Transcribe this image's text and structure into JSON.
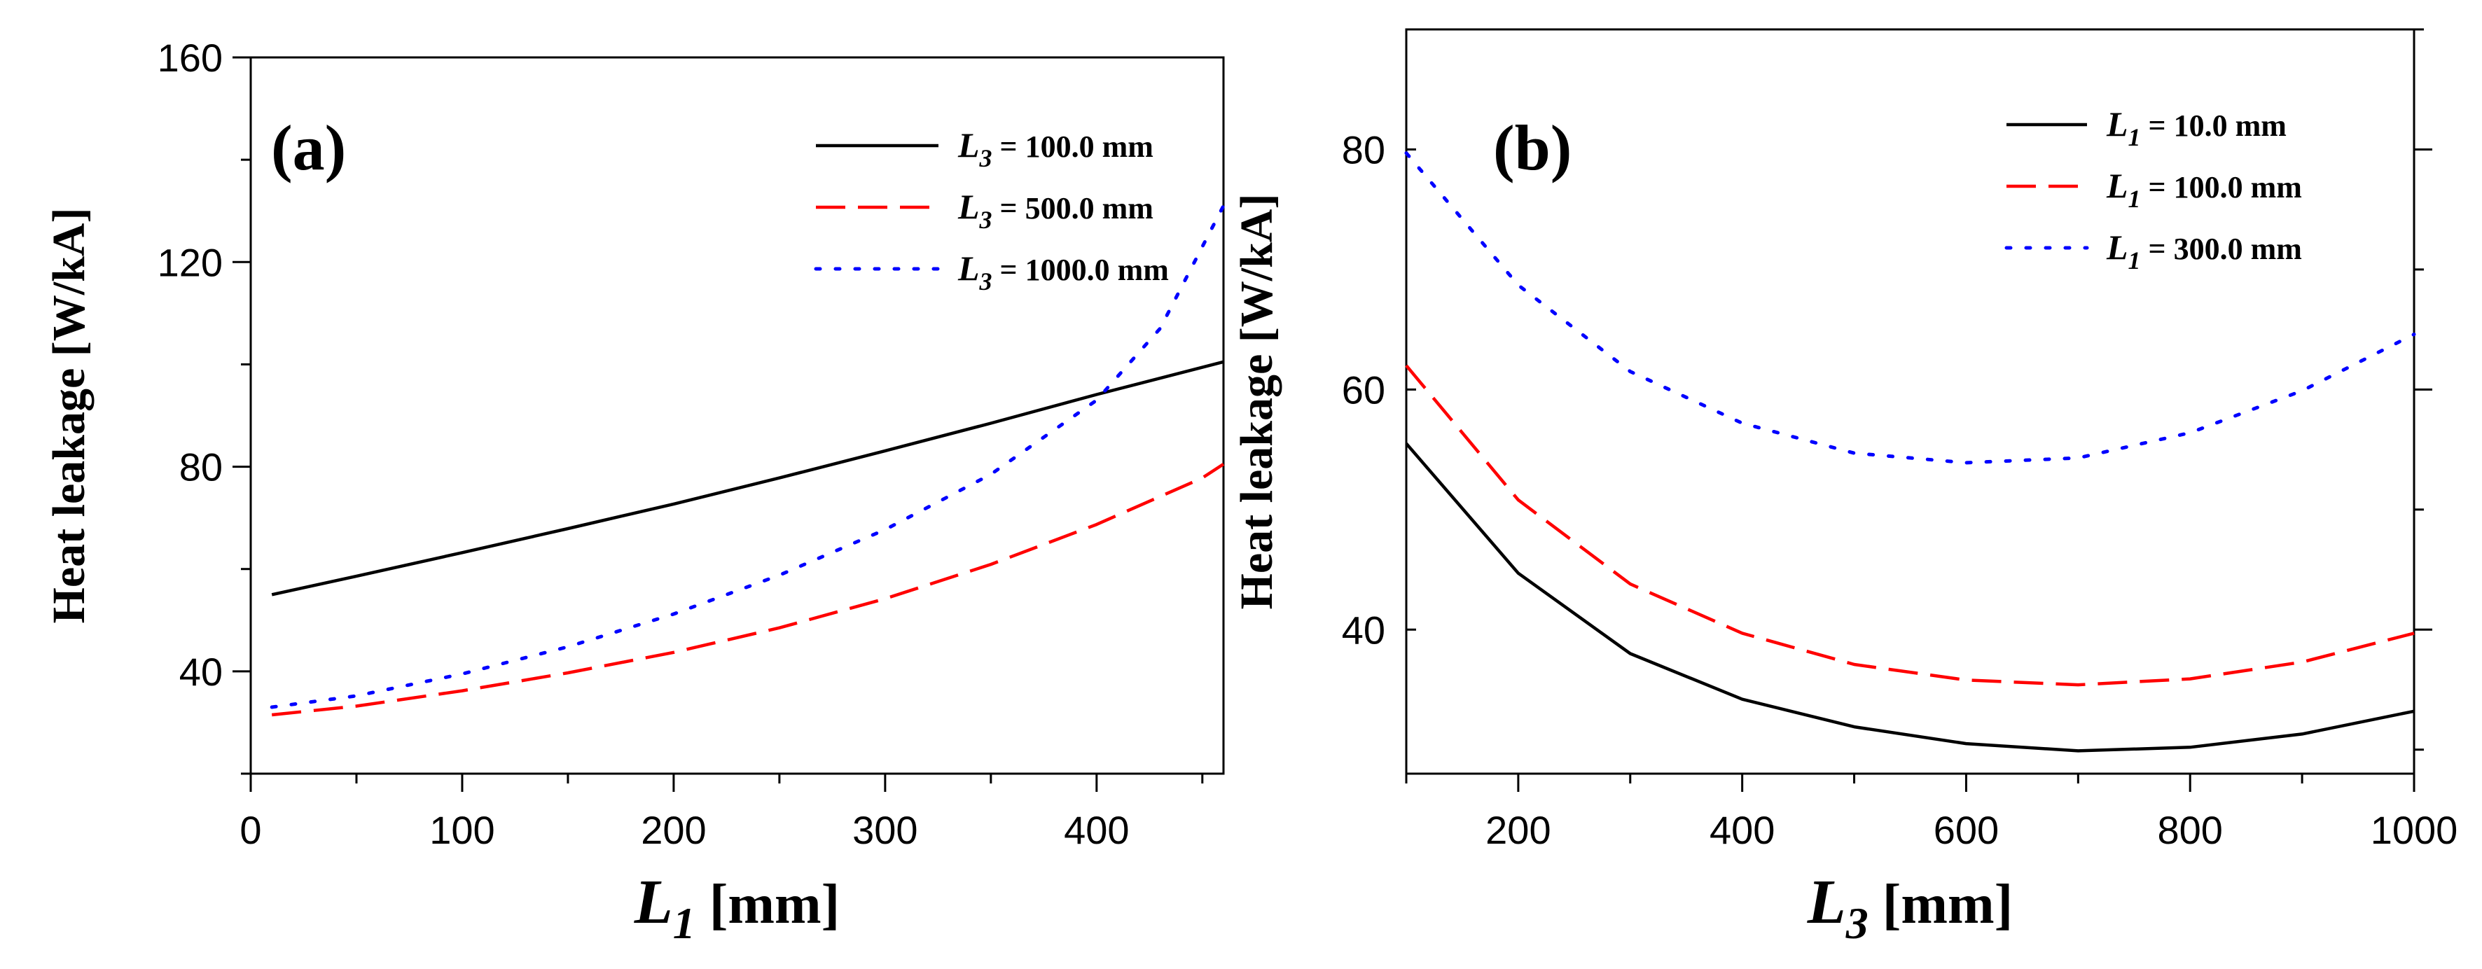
{
  "colors": {
    "black": "#000000",
    "red": "#ff0000",
    "blue": "#0000ff",
    "background": "#ffffff"
  },
  "chart_data": [
    {
      "type": "line",
      "panel_label": "(a)",
      "xlabel": "L1 [mm]",
      "xlabel_main": "L",
      "xlabel_sub": "1",
      "xlabel_unit": " [mm]",
      "ylabel": "Heat leakage  [W/kA]",
      "xlim": [
        0,
        460
      ],
      "ylim": [
        20,
        160
      ],
      "xticks": [
        0,
        100,
        200,
        300,
        400
      ],
      "yticks": [
        40,
        80,
        120,
        160
      ],
      "legend_position": "top-right",
      "series": [
        {
          "name": "L3 = 100.0 mm",
          "label_main": "L",
          "label_sub": "3",
          "label_rest": " = 100.0 mm",
          "color": "#000000",
          "style": "solid",
          "x": [
            10,
            50,
            100,
            150,
            200,
            250,
            300,
            350,
            400,
            460
          ],
          "y": [
            55,
            58.6,
            63.2,
            67.9,
            72.7,
            77.8,
            83.1,
            88.5,
            94.1,
            100.5
          ]
        },
        {
          "name": "L3 = 500.0 mm",
          "label_main": "L",
          "label_sub": "3",
          "label_rest": " = 500.0 mm",
          "color": "#ff0000",
          "style": "dashed",
          "x": [
            10,
            50,
            100,
            150,
            200,
            250,
            300,
            350,
            400,
            450,
            460
          ],
          "y": [
            31.5,
            33.2,
            36.2,
            39.7,
            43.7,
            48.5,
            54.2,
            60.9,
            68.7,
            77.8,
            80.5
          ]
        },
        {
          "name": "L3 = 1000.0 mm",
          "label_main": "L",
          "label_sub": "3",
          "label_rest": " = 1000.0 mm",
          "color": "#0000ff",
          "style": "dotted",
          "x": [
            10,
            50,
            100,
            150,
            200,
            250,
            300,
            350,
            400,
            430,
            460
          ],
          "y": [
            33,
            35.2,
            39.5,
            44.8,
            51.2,
            58.8,
            67.7,
            78.5,
            93,
            107,
            131
          ]
        }
      ]
    },
    {
      "type": "line",
      "panel_label": "(b)",
      "xlabel": "L3 [mm]",
      "xlabel_main": "L",
      "xlabel_sub": "3",
      "xlabel_unit": " [mm]",
      "ylabel": "Heat leakage  [W/kA]",
      "xlim": [
        100,
        1000
      ],
      "ylim": [
        28,
        90
      ],
      "xticks": [
        200,
        400,
        600,
        800,
        1000
      ],
      "yticks": [
        40,
        60,
        80
      ],
      "legend_position": "top-right",
      "series": [
        {
          "name": "L1 = 10.0 mm",
          "label_main": "L",
          "label_sub": "1",
          "label_rest": " = 10.0 mm",
          "color": "#000000",
          "style": "solid",
          "x": [
            100,
            200,
            300,
            400,
            500,
            600,
            700,
            800,
            900,
            1000
          ],
          "y": [
            55.5,
            44.7,
            38,
            34.2,
            31.9,
            30.5,
            29.9,
            30.2,
            31.3,
            33.2
          ]
        },
        {
          "name": "L1 = 100.0 mm",
          "label_main": "L",
          "label_sub": "1",
          "label_rest": " = 100.0 mm",
          "color": "#ff0000",
          "style": "dashed",
          "x": [
            100,
            200,
            300,
            400,
            500,
            600,
            700,
            800,
            900,
            1000
          ],
          "y": [
            62,
            50.8,
            43.8,
            39.7,
            37.1,
            35.8,
            35.4,
            35.9,
            37.3,
            39.7
          ]
        },
        {
          "name": "L1 = 300.0 mm",
          "label_main": "L",
          "label_sub": "1",
          "label_rest": " = 300.0 mm",
          "color": "#0000ff",
          "style": "dotted",
          "x": [
            100,
            200,
            300,
            400,
            500,
            600,
            700,
            800,
            900,
            1000
          ],
          "y": [
            79.7,
            68.7,
            61.5,
            57.2,
            54.7,
            53.9,
            54.3,
            56.4,
            59.9,
            64.6
          ]
        }
      ]
    }
  ]
}
